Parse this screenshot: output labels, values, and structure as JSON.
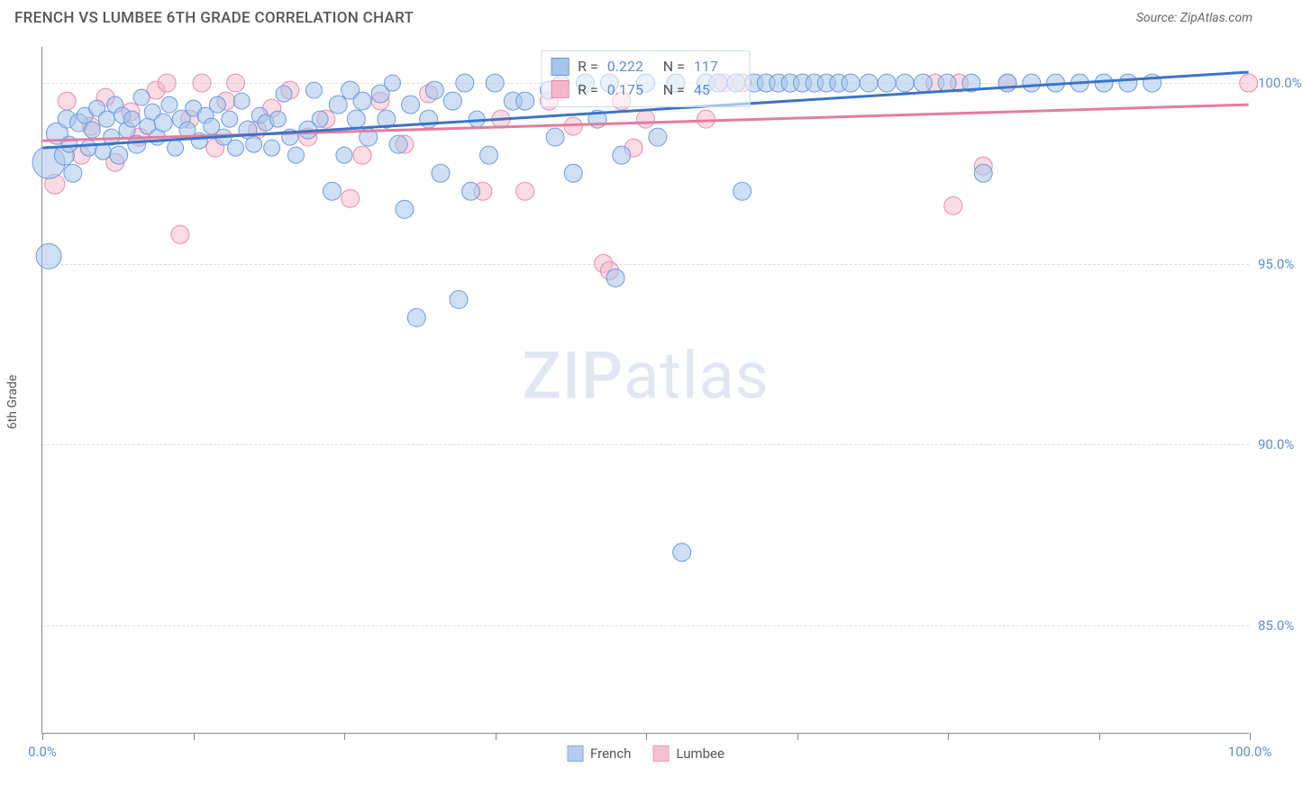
{
  "title": "FRENCH VS LUMBEE 6TH GRADE CORRELATION CHART",
  "source": "Source: ZipAtlas.com",
  "watermark_part1": "ZIP",
  "watermark_part2": "atlas",
  "y_axis_label": "6th Grade",
  "chart": {
    "type": "scatter",
    "xlim": [
      0,
      100
    ],
    "ylim": [
      82,
      101
    ],
    "x_tick_positions": [
      0,
      12.5,
      25,
      37.5,
      50,
      62.5,
      75,
      87.5,
      100
    ],
    "x_tick_labels": {
      "0": "0.0%",
      "100": "100.0%"
    },
    "y_ticks": [
      85.0,
      90.0,
      95.0,
      100.0
    ],
    "y_tick_labels": [
      "85.0%",
      "90.0%",
      "95.0%",
      "100.0%"
    ],
    "grid_color": "#dddddd",
    "axis_color": "#888888",
    "background_color": "#ffffff"
  },
  "series": {
    "french": {
      "label": "French",
      "fill": "#a7c4ea",
      "stroke": "#6b9adf",
      "line_color": "#3c74c6",
      "fill_opacity": 0.55,
      "r_value": "0.222",
      "n_value": "117",
      "trend": {
        "x1": 0,
        "y1": 98.2,
        "x2": 100,
        "y2": 100.3
      },
      "points": [
        {
          "x": 0.5,
          "y": 97.8,
          "r": 18
        },
        {
          "x": 0.5,
          "y": 95.2,
          "r": 14
        },
        {
          "x": 1.2,
          "y": 98.6,
          "r": 12
        },
        {
          "x": 1.8,
          "y": 98.0,
          "r": 11
        },
        {
          "x": 2.0,
          "y": 99.0,
          "r": 10
        },
        {
          "x": 2.2,
          "y": 98.3,
          "r": 9
        },
        {
          "x": 2.5,
          "y": 97.5,
          "r": 10
        },
        {
          "x": 3.0,
          "y": 98.9,
          "r": 10
        },
        {
          "x": 3.5,
          "y": 99.1,
          "r": 9
        },
        {
          "x": 3.8,
          "y": 98.2,
          "r": 9
        },
        {
          "x": 4.1,
          "y": 98.7,
          "r": 9
        },
        {
          "x": 4.5,
          "y": 99.3,
          "r": 9
        },
        {
          "x": 5.0,
          "y": 98.1,
          "r": 9
        },
        {
          "x": 5.3,
          "y": 99.0,
          "r": 9
        },
        {
          "x": 5.7,
          "y": 98.5,
          "r": 9
        },
        {
          "x": 6.0,
          "y": 99.4,
          "r": 9
        },
        {
          "x": 6.3,
          "y": 98.0,
          "r": 10
        },
        {
          "x": 6.6,
          "y": 99.1,
          "r": 9
        },
        {
          "x": 7.0,
          "y": 98.7,
          "r": 9
        },
        {
          "x": 7.4,
          "y": 99.0,
          "r": 9
        },
        {
          "x": 7.8,
          "y": 98.3,
          "r": 10
        },
        {
          "x": 8.2,
          "y": 99.6,
          "r": 9
        },
        {
          "x": 8.7,
          "y": 98.8,
          "r": 9
        },
        {
          "x": 9.1,
          "y": 99.2,
          "r": 9
        },
        {
          "x": 9.5,
          "y": 98.5,
          "r": 9
        },
        {
          "x": 10.0,
          "y": 98.9,
          "r": 10
        },
        {
          "x": 10.5,
          "y": 99.4,
          "r": 9
        },
        {
          "x": 11.0,
          "y": 98.2,
          "r": 9
        },
        {
          "x": 11.5,
          "y": 99.0,
          "r": 10
        },
        {
          "x": 12.0,
          "y": 98.7,
          "r": 9
        },
        {
          "x": 12.5,
          "y": 99.3,
          "r": 9
        },
        {
          "x": 13.0,
          "y": 98.4,
          "r": 9
        },
        {
          "x": 13.5,
          "y": 99.1,
          "r": 9
        },
        {
          "x": 14.0,
          "y": 98.8,
          "r": 9
        },
        {
          "x": 14.5,
          "y": 99.4,
          "r": 9
        },
        {
          "x": 15.0,
          "y": 98.5,
          "r": 9
        },
        {
          "x": 15.5,
          "y": 99.0,
          "r": 9
        },
        {
          "x": 16.0,
          "y": 98.2,
          "r": 9
        },
        {
          "x": 16.5,
          "y": 99.5,
          "r": 9
        },
        {
          "x": 17.0,
          "y": 98.7,
          "r": 10
        },
        {
          "x": 17.5,
          "y": 98.3,
          "r": 9
        },
        {
          "x": 18.0,
          "y": 99.1,
          "r": 9
        },
        {
          "x": 18.5,
          "y": 98.9,
          "r": 9
        },
        {
          "x": 19.0,
          "y": 98.2,
          "r": 9
        },
        {
          "x": 19.5,
          "y": 99.0,
          "r": 9
        },
        {
          "x": 20.0,
          "y": 99.7,
          "r": 9
        },
        {
          "x": 20.5,
          "y": 98.5,
          "r": 9
        },
        {
          "x": 21.0,
          "y": 98.0,
          "r": 9
        },
        {
          "x": 22.0,
          "y": 98.7,
          "r": 10
        },
        {
          "x": 22.5,
          "y": 99.8,
          "r": 9
        },
        {
          "x": 23.0,
          "y": 99.0,
          "r": 9
        },
        {
          "x": 24.0,
          "y": 97.0,
          "r": 10
        },
        {
          "x": 24.5,
          "y": 99.4,
          "r": 10
        },
        {
          "x": 25.0,
          "y": 98.0,
          "r": 9
        },
        {
          "x": 25.5,
          "y": 99.8,
          "r": 10
        },
        {
          "x": 26.0,
          "y": 99.0,
          "r": 10
        },
        {
          "x": 26.5,
          "y": 99.5,
          "r": 10
        },
        {
          "x": 27.0,
          "y": 98.5,
          "r": 10
        },
        {
          "x": 28.0,
          "y": 99.7,
          "r": 10
        },
        {
          "x": 28.5,
          "y": 99.0,
          "r": 10
        },
        {
          "x": 29.0,
          "y": 100.0,
          "r": 9
        },
        {
          "x": 29.5,
          "y": 98.3,
          "r": 10
        },
        {
          "x": 30.0,
          "y": 96.5,
          "r": 10
        },
        {
          "x": 30.5,
          "y": 99.4,
          "r": 10
        },
        {
          "x": 31.0,
          "y": 93.5,
          "r": 10
        },
        {
          "x": 32.0,
          "y": 99.0,
          "r": 10
        },
        {
          "x": 32.5,
          "y": 99.8,
          "r": 10
        },
        {
          "x": 33.0,
          "y": 97.5,
          "r": 10
        },
        {
          "x": 34.0,
          "y": 99.5,
          "r": 10
        },
        {
          "x": 34.5,
          "y": 94.0,
          "r": 10
        },
        {
          "x": 35.0,
          "y": 100.0,
          "r": 10
        },
        {
          "x": 35.5,
          "y": 97.0,
          "r": 10
        },
        {
          "x": 36.0,
          "y": 99.0,
          "r": 9
        },
        {
          "x": 37.0,
          "y": 98.0,
          "r": 10
        },
        {
          "x": 37.5,
          "y": 100.0,
          "r": 10
        },
        {
          "x": 39.0,
          "y": 99.5,
          "r": 10
        },
        {
          "x": 40.0,
          "y": 99.5,
          "r": 10
        },
        {
          "x": 42.0,
          "y": 99.8,
          "r": 10
        },
        {
          "x": 42.5,
          "y": 98.5,
          "r": 10
        },
        {
          "x": 43.0,
          "y": 100.0,
          "r": 9
        },
        {
          "x": 44.0,
          "y": 97.5,
          "r": 10
        },
        {
          "x": 45.0,
          "y": 100.0,
          "r": 10
        },
        {
          "x": 46.0,
          "y": 99.0,
          "r": 10
        },
        {
          "x": 47.0,
          "y": 100.0,
          "r": 10
        },
        {
          "x": 47.5,
          "y": 94.6,
          "r": 10
        },
        {
          "x": 48.0,
          "y": 98.0,
          "r": 10
        },
        {
          "x": 50.0,
          "y": 100.0,
          "r": 10
        },
        {
          "x": 51.0,
          "y": 98.5,
          "r": 10
        },
        {
          "x": 52.5,
          "y": 100.0,
          "r": 10
        },
        {
          "x": 53.0,
          "y": 87.0,
          "r": 10
        },
        {
          "x": 55.0,
          "y": 100.0,
          "r": 10
        },
        {
          "x": 56.0,
          "y": 100.0,
          "r": 10
        },
        {
          "x": 57.5,
          "y": 100.0,
          "r": 10
        },
        {
          "x": 58.0,
          "y": 97.0,
          "r": 10
        },
        {
          "x": 59.0,
          "y": 100.0,
          "r": 10
        },
        {
          "x": 60.0,
          "y": 100.0,
          "r": 10
        },
        {
          "x": 61.0,
          "y": 100.0,
          "r": 10
        },
        {
          "x": 62.0,
          "y": 100.0,
          "r": 10
        },
        {
          "x": 63.0,
          "y": 100.0,
          "r": 10
        },
        {
          "x": 64.0,
          "y": 100.0,
          "r": 10
        },
        {
          "x": 65.0,
          "y": 100.0,
          "r": 10
        },
        {
          "x": 66.0,
          "y": 100.0,
          "r": 10
        },
        {
          "x": 67.0,
          "y": 100.0,
          "r": 10
        },
        {
          "x": 68.5,
          "y": 100.0,
          "r": 10
        },
        {
          "x": 70.0,
          "y": 100.0,
          "r": 10
        },
        {
          "x": 71.5,
          "y": 100.0,
          "r": 10
        },
        {
          "x": 73.0,
          "y": 100.0,
          "r": 10
        },
        {
          "x": 75.0,
          "y": 100.0,
          "r": 10
        },
        {
          "x": 77.0,
          "y": 100.0,
          "r": 10
        },
        {
          "x": 78.0,
          "y": 97.5,
          "r": 10
        },
        {
          "x": 80.0,
          "y": 100.0,
          "r": 10
        },
        {
          "x": 82.0,
          "y": 100.0,
          "r": 10
        },
        {
          "x": 84.0,
          "y": 100.0,
          "r": 10
        },
        {
          "x": 86.0,
          "y": 100.0,
          "r": 10
        },
        {
          "x": 88.0,
          "y": 100.0,
          "r": 10
        },
        {
          "x": 90.0,
          "y": 100.0,
          "r": 10
        },
        {
          "x": 92.0,
          "y": 100.0,
          "r": 10
        }
      ]
    },
    "lumbee": {
      "label": "Lumbee",
      "fill": "#f4b7c9",
      "stroke": "#e98aac",
      "line_color": "#e57ba0",
      "fill_opacity": 0.5,
      "r_value": "0.175",
      "n_value": "45",
      "trend": {
        "x1": 0,
        "y1": 98.4,
        "x2": 100,
        "y2": 99.4
      },
      "points": [
        {
          "x": 1.0,
          "y": 97.2,
          "r": 11
        },
        {
          "x": 2.0,
          "y": 99.5,
          "r": 10
        },
        {
          "x": 3.2,
          "y": 98.0,
          "r": 10
        },
        {
          "x": 4.0,
          "y": 98.8,
          "r": 10
        },
        {
          "x": 5.2,
          "y": 99.6,
          "r": 10
        },
        {
          "x": 6.0,
          "y": 97.8,
          "r": 10
        },
        {
          "x": 7.3,
          "y": 99.2,
          "r": 10
        },
        {
          "x": 8.0,
          "y": 98.5,
          "r": 10
        },
        {
          "x": 9.4,
          "y": 99.8,
          "r": 10
        },
        {
          "x": 10.3,
          "y": 100.0,
          "r": 10
        },
        {
          "x": 11.4,
          "y": 95.8,
          "r": 10
        },
        {
          "x": 12.2,
          "y": 99.0,
          "r": 10
        },
        {
          "x": 13.2,
          "y": 100.0,
          "r": 10
        },
        {
          "x": 14.3,
          "y": 98.2,
          "r": 10
        },
        {
          "x": 15.2,
          "y": 99.5,
          "r": 10
        },
        {
          "x": 16.0,
          "y": 100.0,
          "r": 10
        },
        {
          "x": 17.8,
          "y": 98.7,
          "r": 10
        },
        {
          "x": 19.0,
          "y": 99.3,
          "r": 10
        },
        {
          "x": 20.5,
          "y": 99.8,
          "r": 10
        },
        {
          "x": 22.0,
          "y": 98.5,
          "r": 10
        },
        {
          "x": 23.5,
          "y": 99.0,
          "r": 10
        },
        {
          "x": 25.5,
          "y": 96.8,
          "r": 10
        },
        {
          "x": 26.5,
          "y": 98.0,
          "r": 10
        },
        {
          "x": 28.0,
          "y": 99.5,
          "r": 10
        },
        {
          "x": 30.0,
          "y": 98.3,
          "r": 10
        },
        {
          "x": 32.0,
          "y": 99.7,
          "r": 10
        },
        {
          "x": 36.5,
          "y": 97.0,
          "r": 10
        },
        {
          "x": 38.0,
          "y": 99.0,
          "r": 10
        },
        {
          "x": 40.0,
          "y": 97.0,
          "r": 10
        },
        {
          "x": 42.0,
          "y": 99.5,
          "r": 10
        },
        {
          "x": 44.0,
          "y": 98.8,
          "r": 10
        },
        {
          "x": 46.5,
          "y": 95.0,
          "r": 10
        },
        {
          "x": 47.0,
          "y": 94.8,
          "r": 10
        },
        {
          "x": 48.0,
          "y": 99.5,
          "r": 10
        },
        {
          "x": 49.0,
          "y": 98.2,
          "r": 10
        },
        {
          "x": 50.0,
          "y": 99.0,
          "r": 10
        },
        {
          "x": 55.0,
          "y": 99.0,
          "r": 10
        },
        {
          "x": 56.5,
          "y": 100.0,
          "r": 10
        },
        {
          "x": 58.0,
          "y": 100.0,
          "r": 10
        },
        {
          "x": 74.0,
          "y": 100.0,
          "r": 10
        },
        {
          "x": 75.5,
          "y": 96.6,
          "r": 10
        },
        {
          "x": 76.0,
          "y": 100.0,
          "r": 10
        },
        {
          "x": 78.0,
          "y": 97.7,
          "r": 10
        },
        {
          "x": 80.0,
          "y": 100.0,
          "r": 10
        },
        {
          "x": 100.0,
          "y": 100.0,
          "r": 10
        }
      ]
    }
  },
  "stats_labels": {
    "r": "R =",
    "n": "N ="
  },
  "legend_position": "bottom-center"
}
